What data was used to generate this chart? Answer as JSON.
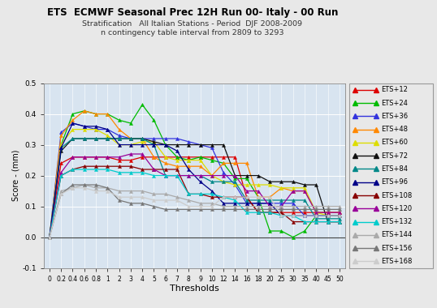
{
  "title": "ETS  ECMWF Seasonal Prec 12H Run 00- Italy - 00 Run",
  "subtitle1": "Stratification   All Italian Stations - Period  DJF 2008-2009",
  "subtitle2": "n contingency table interval from 2809 to 3293",
  "xlabel": "Thresholds",
  "ylabel": "Score - (mm)",
  "thresholds": [
    0,
    0.2,
    0.4,
    0.6,
    0.8,
    1,
    2,
    3,
    4,
    5,
    6,
    7,
    8,
    9,
    10,
    12,
    14,
    16,
    18,
    20,
    25,
    30,
    35,
    40,
    45,
    50
  ],
  "xlabels": [
    "0",
    "0.2",
    "0.4",
    "0.6",
    "0.8",
    "1",
    "2",
    "3",
    "4",
    "5",
    "6",
    "7",
    "8",
    "9",
    "10",
    "12",
    "14",
    "16",
    "18",
    "20",
    "25",
    "30",
    "35",
    "40",
    "45",
    "50"
  ],
  "ylim": [
    -0.1,
    0.5
  ],
  "series": {
    "ETS+12": {
      "color": "#dd0000",
      "data": [
        0.0,
        0.24,
        0.26,
        0.26,
        0.26,
        0.26,
        0.25,
        0.25,
        0.26,
        0.26,
        0.26,
        0.26,
        0.26,
        0.26,
        0.26,
        0.26,
        0.26,
        0.13,
        0.08,
        0.08,
        0.08,
        0.08,
        0.08,
        0.08,
        0.08,
        0.08
      ]
    },
    "ETS+24": {
      "color": "#00bb00",
      "data": [
        0.0,
        0.3,
        0.4,
        0.41,
        0.4,
        0.4,
        0.38,
        0.37,
        0.43,
        0.38,
        0.3,
        0.26,
        0.25,
        0.26,
        0.25,
        0.24,
        0.19,
        0.19,
        0.13,
        0.02,
        0.02,
        0.0,
        0.02,
        0.07,
        0.07,
        0.07
      ]
    },
    "ETS+36": {
      "color": "#3333dd",
      "data": [
        0.0,
        0.34,
        0.37,
        0.36,
        0.35,
        0.35,
        0.33,
        0.32,
        0.32,
        0.32,
        0.32,
        0.32,
        0.31,
        0.3,
        0.29,
        0.21,
        0.17,
        0.11,
        0.11,
        0.11,
        0.11,
        0.11,
        0.07,
        0.07,
        0.07,
        0.07
      ]
    },
    "ETS+48": {
      "color": "#ff8800",
      "data": [
        0.0,
        0.33,
        0.38,
        0.41,
        0.4,
        0.4,
        0.35,
        0.32,
        0.32,
        0.26,
        0.24,
        0.23,
        0.23,
        0.23,
        0.2,
        0.24,
        0.24,
        0.24,
        0.13,
        0.13,
        0.16,
        0.15,
        0.15,
        0.08,
        0.08,
        0.08
      ]
    },
    "ETS+60": {
      "color": "#dddd00",
      "data": [
        0.0,
        0.3,
        0.35,
        0.35,
        0.35,
        0.33,
        0.3,
        0.3,
        0.31,
        0.31,
        0.26,
        0.25,
        0.25,
        0.25,
        0.2,
        0.18,
        0.17,
        0.17,
        0.17,
        0.17,
        0.16,
        0.16,
        0.16,
        0.08,
        0.07,
        0.07
      ]
    },
    "ETS+72": {
      "color": "#111111",
      "data": [
        0.0,
        0.28,
        0.32,
        0.32,
        0.32,
        0.32,
        0.32,
        0.32,
        0.32,
        0.31,
        0.3,
        0.3,
        0.3,
        0.3,
        0.3,
        0.3,
        0.2,
        0.2,
        0.2,
        0.18,
        0.18,
        0.18,
        0.17,
        0.17,
        0.05,
        0.05
      ]
    },
    "ETS+84": {
      "color": "#008888",
      "data": [
        0.0,
        0.29,
        0.32,
        0.32,
        0.32,
        0.32,
        0.32,
        0.32,
        0.32,
        0.3,
        0.2,
        0.2,
        0.2,
        0.2,
        0.18,
        0.18,
        0.18,
        0.12,
        0.12,
        0.12,
        0.12,
        0.12,
        0.12,
        0.06,
        0.06,
        0.06
      ]
    },
    "ETS+96": {
      "color": "#000088",
      "data": [
        0.0,
        0.29,
        0.37,
        0.36,
        0.36,
        0.35,
        0.3,
        0.3,
        0.3,
        0.3,
        0.3,
        0.28,
        0.22,
        0.18,
        0.15,
        0.11,
        0.11,
        0.11,
        0.11,
        0.11,
        0.07,
        0.07,
        0.07,
        0.07,
        0.07,
        0.07
      ]
    },
    "ETS+108": {
      "color": "#880000",
      "data": [
        0.0,
        0.2,
        0.22,
        0.23,
        0.23,
        0.23,
        0.23,
        0.23,
        0.22,
        0.22,
        0.22,
        0.22,
        0.14,
        0.14,
        0.13,
        0.13,
        0.13,
        0.13,
        0.08,
        0.08,
        0.08,
        0.05,
        0.05,
        0.05,
        0.05,
        0.05
      ]
    },
    "ETS+120": {
      "color": "#990099",
      "data": [
        0.0,
        0.21,
        0.26,
        0.26,
        0.26,
        0.26,
        0.26,
        0.27,
        0.27,
        0.22,
        0.2,
        0.2,
        0.2,
        0.2,
        0.2,
        0.2,
        0.2,
        0.15,
        0.15,
        0.1,
        0.1,
        0.15,
        0.15,
        0.08,
        0.08,
        0.08
      ]
    },
    "ETS+132": {
      "color": "#00cccc",
      "data": [
        0.0,
        0.2,
        0.22,
        0.22,
        0.22,
        0.22,
        0.21,
        0.21,
        0.21,
        0.2,
        0.2,
        0.2,
        0.14,
        0.14,
        0.14,
        0.13,
        0.12,
        0.08,
        0.08,
        0.08,
        0.07,
        0.07,
        0.05,
        0.05,
        0.05,
        0.05
      ]
    },
    "ETS+144": {
      "color": "#aaaaaa",
      "data": [
        0.0,
        0.15,
        0.16,
        0.17,
        0.16,
        0.16,
        0.15,
        0.15,
        0.15,
        0.14,
        0.14,
        0.13,
        0.12,
        0.11,
        0.11,
        0.1,
        0.1,
        0.1,
        0.1,
        0.1,
        0.1,
        0.1,
        0.1,
        0.1,
        0.1,
        0.1
      ]
    },
    "ETS+156": {
      "color": "#777777",
      "data": [
        0.0,
        0.14,
        0.17,
        0.17,
        0.17,
        0.16,
        0.12,
        0.11,
        0.11,
        0.1,
        0.09,
        0.09,
        0.09,
        0.09,
        0.09,
        0.09,
        0.09,
        0.09,
        0.09,
        0.09,
        0.09,
        0.09,
        0.09,
        0.09,
        0.09,
        0.09
      ]
    },
    "ETS+168": {
      "color": "#cccccc",
      "data": [
        0.0,
        0.14,
        0.16,
        0.16,
        0.15,
        0.15,
        0.13,
        0.13,
        0.13,
        0.12,
        0.12,
        0.12,
        0.1,
        0.1,
        0.1,
        0.13,
        0.13,
        0.13,
        0.13,
        0.13,
        0.07,
        0.07,
        0.07,
        0.07,
        0.07,
        0.07
      ]
    }
  },
  "bg_color": "#d8e4f0",
  "fig_bg": "#e8e8e8",
  "legend_bg": "#f0f0f0",
  "hline_y": [
    0.1,
    0.2,
    0.3,
    0.4,
    0.5
  ],
  "grid_color": "#ffffff"
}
